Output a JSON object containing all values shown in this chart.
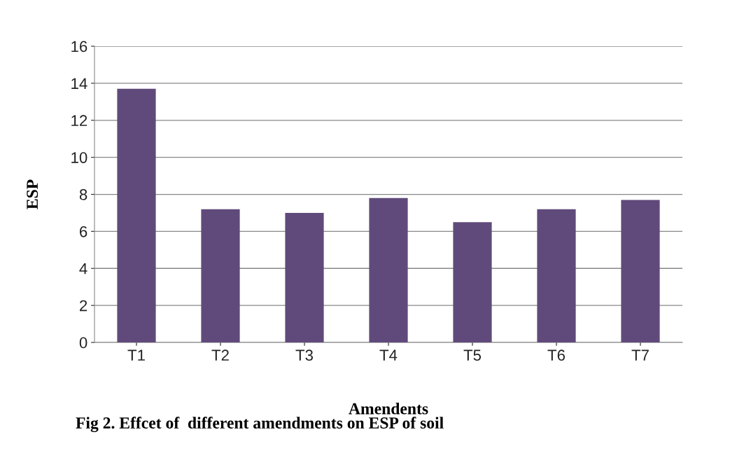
{
  "chart_data": {
    "type": "bar",
    "xlabel": "Amendents",
    "ylabel": "ESP",
    "categories": [
      "T1",
      "T2",
      "T3",
      "T4",
      "T5",
      "T6",
      "T7"
    ],
    "values": [
      13.7,
      7.2,
      7.0,
      7.8,
      6.5,
      7.2,
      7.7
    ],
    "color": "#604a7b",
    "ylim": [
      0,
      16
    ],
    "yticks": [
      0,
      2,
      4,
      6,
      8,
      10,
      12,
      14,
      16
    ],
    "grid": "y",
    "legend": false,
    "annotations": [
      "Fig 2. Effcet of  different amendments on ESP of soil"
    ]
  }
}
